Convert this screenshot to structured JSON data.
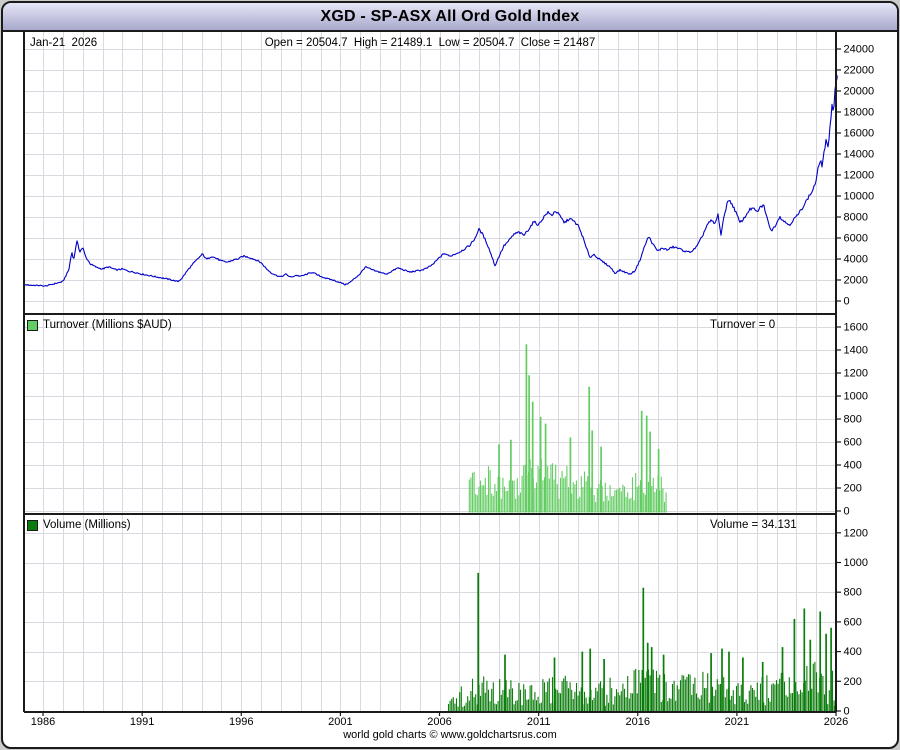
{
  "window": {
    "title": "XGD - SP-ASX All Ord Gold Index"
  },
  "header": {
    "date_label": "Jan-21  2026",
    "ohlc_display": "Open = 20504.7  High = 21489.1  Low = 20504.7  Close = 21487"
  },
  "panels": {
    "turnover": {
      "legend": "Turnover (Millions $AUD)",
      "current_display": "Turnover = 0"
    },
    "volume": {
      "legend": "Volume (Millions)",
      "current_display": "Volume = 34.131"
    }
  },
  "footer": {
    "credit": "world gold charts © www.goldchartsrus.com"
  },
  "colors": {
    "price_line": "#0000c8",
    "turnover_bar": "#63cc63",
    "volume_bar": "#0a7d0a",
    "grid": "#d9d9e0",
    "axis": "#1b1b1b",
    "titlebar_top": "#e6e6f7",
    "titlebar_bottom": "#a8a8cc",
    "frame_border": "#1b1b1b",
    "outer_background": "#cbcbcb"
  },
  "chart_data": [
    {
      "type": "line",
      "name": "XGD price",
      "title": "XGD - SP-ASX All Ord Gold Index",
      "xlabel": "",
      "ylabel": "",
      "xlim": [
        1985.04,
        2026.06
      ],
      "ylim": [
        0,
        24000
      ],
      "y_ticks": [
        0,
        2000,
        4000,
        6000,
        8000,
        10000,
        12000,
        14000,
        16000,
        18000,
        20000,
        22000,
        24000
      ],
      "x_ticks": [
        1986,
        1991,
        1996,
        2001,
        2006,
        2011,
        2016,
        2021,
        2026
      ],
      "grid": true,
      "legend_position": "none",
      "last_bar": {
        "date": "Jan-21 2026",
        "open": 20504.7,
        "high": 21489.1,
        "low": 20504.7,
        "close": 21487
      },
      "points": [
        [
          1985.05,
          1550
        ],
        [
          1985.4,
          1500
        ],
        [
          1985.8,
          1480
        ],
        [
          1986.1,
          1420
        ],
        [
          1986.4,
          1560
        ],
        [
          1986.7,
          1700
        ],
        [
          1987.0,
          1850
        ],
        [
          1987.15,
          2400
        ],
        [
          1987.3,
          2950
        ],
        [
          1987.45,
          4700
        ],
        [
          1987.55,
          3900
        ],
        [
          1987.7,
          5750
        ],
        [
          1987.85,
          4700
        ],
        [
          1988.0,
          5100
        ],
        [
          1988.15,
          4200
        ],
        [
          1988.4,
          3500
        ],
        [
          1988.7,
          3200
        ],
        [
          1989.0,
          3050
        ],
        [
          1989.3,
          3250
        ],
        [
          1989.7,
          2950
        ],
        [
          1990.0,
          3050
        ],
        [
          1990.3,
          2850
        ],
        [
          1990.7,
          2700
        ],
        [
          1991.0,
          2550
        ],
        [
          1991.3,
          2450
        ],
        [
          1991.7,
          2300
        ],
        [
          1992.0,
          2200
        ],
        [
          1992.4,
          2050
        ],
        [
          1992.8,
          1850
        ],
        [
          1993.0,
          2150
        ],
        [
          1993.3,
          2950
        ],
        [
          1993.6,
          3600
        ],
        [
          1993.85,
          4100
        ],
        [
          1994.05,
          4480
        ],
        [
          1994.25,
          3950
        ],
        [
          1994.5,
          4280
        ],
        [
          1994.75,
          4050
        ],
        [
          1995.0,
          3800
        ],
        [
          1995.3,
          3700
        ],
        [
          1995.6,
          3900
        ],
        [
          1995.9,
          4050
        ],
        [
          1996.1,
          4280
        ],
        [
          1996.4,
          4150
        ],
        [
          1996.7,
          3950
        ],
        [
          1997.0,
          3650
        ],
        [
          1997.25,
          3100
        ],
        [
          1997.5,
          2700
        ],
        [
          1997.75,
          2450
        ],
        [
          1998.0,
          2300
        ],
        [
          1998.25,
          2550
        ],
        [
          1998.5,
          2250
        ],
        [
          1998.75,
          2450
        ],
        [
          1999.0,
          2350
        ],
        [
          1999.3,
          2550
        ],
        [
          1999.6,
          2750
        ],
        [
          1999.8,
          2500
        ],
        [
          2000.0,
          2350
        ],
        [
          2000.3,
          2150
        ],
        [
          2000.7,
          1950
        ],
        [
          2001.0,
          1750
        ],
        [
          2001.25,
          1550
        ],
        [
          2001.5,
          1800
        ],
        [
          2001.75,
          2200
        ],
        [
          2002.0,
          2600
        ],
        [
          2002.25,
          3250
        ],
        [
          2002.5,
          3050
        ],
        [
          2002.75,
          2850
        ],
        [
          2003.0,
          2750
        ],
        [
          2003.3,
          2550
        ],
        [
          2003.6,
          2850
        ],
        [
          2003.9,
          3150
        ],
        [
          2004.2,
          2950
        ],
        [
          2004.5,
          2750
        ],
        [
          2004.8,
          2850
        ],
        [
          2005.1,
          2950
        ],
        [
          2005.4,
          3150
        ],
        [
          2005.7,
          3550
        ],
        [
          2006.0,
          4150
        ],
        [
          2006.25,
          4550
        ],
        [
          2006.5,
          4250
        ],
        [
          2006.75,
          4450
        ],
        [
          2007.0,
          4650
        ],
        [
          2007.25,
          4950
        ],
        [
          2007.5,
          5250
        ],
        [
          2007.75,
          5850
        ],
        [
          2008.0,
          6850
        ],
        [
          2008.2,
          6250
        ],
        [
          2008.4,
          5450
        ],
        [
          2008.6,
          4450
        ],
        [
          2008.8,
          3350
        ],
        [
          2009.0,
          4250
        ],
        [
          2009.25,
          5250
        ],
        [
          2009.5,
          5750
        ],
        [
          2009.75,
          6350
        ],
        [
          2010.0,
          6550
        ],
        [
          2010.25,
          6250
        ],
        [
          2010.5,
          6850
        ],
        [
          2010.75,
          7550
        ],
        [
          2011.0,
          7250
        ],
        [
          2011.2,
          7850
        ],
        [
          2011.45,
          8450
        ],
        [
          2011.65,
          8150
        ],
        [
          2011.85,
          8600
        ],
        [
          2012.05,
          8150
        ],
        [
          2012.3,
          7450
        ],
        [
          2012.55,
          7850
        ],
        [
          2012.8,
          7550
        ],
        [
          2013.0,
          7150
        ],
        [
          2013.2,
          6250
        ],
        [
          2013.4,
          5050
        ],
        [
          2013.6,
          4150
        ],
        [
          2013.8,
          4450
        ],
        [
          2014.0,
          4050
        ],
        [
          2014.3,
          3650
        ],
        [
          2014.6,
          3250
        ],
        [
          2014.85,
          2650
        ],
        [
          2015.1,
          2950
        ],
        [
          2015.35,
          2750
        ],
        [
          2015.6,
          2550
        ],
        [
          2015.85,
          2850
        ],
        [
          2016.1,
          3850
        ],
        [
          2016.35,
          5250
        ],
        [
          2016.55,
          6150
        ],
        [
          2016.75,
          5450
        ],
        [
          2017.0,
          4750
        ],
        [
          2017.25,
          5050
        ],
        [
          2017.5,
          4850
        ],
        [
          2017.75,
          5150
        ],
        [
          2018.0,
          5050
        ],
        [
          2018.25,
          4850
        ],
        [
          2018.5,
          4650
        ],
        [
          2018.75,
          4750
        ],
        [
          2019.0,
          5250
        ],
        [
          2019.25,
          6150
        ],
        [
          2019.5,
          7250
        ],
        [
          2019.7,
          7650
        ],
        [
          2019.9,
          7350
        ],
        [
          2020.05,
          8250
        ],
        [
          2020.2,
          6250
        ],
        [
          2020.35,
          8050
        ],
        [
          2020.55,
          9650
        ],
        [
          2020.75,
          9250
        ],
        [
          2020.95,
          8450
        ],
        [
          2021.15,
          7450
        ],
        [
          2021.4,
          7950
        ],
        [
          2021.6,
          8650
        ],
        [
          2021.8,
          8850
        ],
        [
          2022.0,
          8450
        ],
        [
          2022.2,
          8950
        ],
        [
          2022.35,
          9150
        ],
        [
          2022.55,
          7650
        ],
        [
          2022.75,
          6650
        ],
        [
          2022.95,
          7250
        ],
        [
          2023.15,
          8050
        ],
        [
          2023.4,
          7550
        ],
        [
          2023.65,
          7250
        ],
        [
          2023.9,
          7850
        ],
        [
          2024.1,
          8250
        ],
        [
          2024.35,
          9050
        ],
        [
          2024.6,
          9850
        ],
        [
          2024.8,
          10450
        ],
        [
          2025.0,
          11450
        ],
        [
          2025.1,
          12650
        ],
        [
          2025.2,
          13450
        ],
        [
          2025.3,
          12850
        ],
        [
          2025.4,
          14250
        ],
        [
          2025.5,
          15250
        ],
        [
          2025.6,
          14450
        ],
        [
          2025.7,
          16850
        ],
        [
          2025.8,
          18650
        ],
        [
          2025.87,
          17850
        ],
        [
          2025.93,
          19850
        ],
        [
          2026.0,
          20900
        ],
        [
          2026.06,
          21487
        ]
      ]
    },
    {
      "type": "bar",
      "name": "Turnover (Millions $AUD)",
      "current_value": 0,
      "ylim": [
        0,
        1600
      ],
      "y_ticks": [
        0,
        200,
        400,
        600,
        800,
        1000,
        1200,
        1400,
        1600
      ],
      "range": [
        2007.5,
        2017.5
      ],
      "envelope": [
        [
          2007.5,
          260
        ],
        [
          2008.0,
          300
        ],
        [
          2008.5,
          320
        ],
        [
          2009.0,
          290
        ],
        [
          2009.5,
          310
        ],
        [
          2010.0,
          330
        ],
        [
          2010.5,
          360
        ],
        [
          2011.0,
          380
        ],
        [
          2011.5,
          370
        ],
        [
          2012.0,
          330
        ],
        [
          2012.5,
          310
        ],
        [
          2013.0,
          320
        ],
        [
          2013.5,
          300
        ],
        [
          2014.0,
          240
        ],
        [
          2014.5,
          210
        ],
        [
          2015.0,
          200
        ],
        [
          2015.5,
          230
        ],
        [
          2016.0,
          280
        ],
        [
          2016.5,
          300
        ],
        [
          2017.0,
          260
        ],
        [
          2017.5,
          220
        ]
      ],
      "spikes": [
        [
          2009.0,
          580
        ],
        [
          2009.6,
          620
        ],
        [
          2010.38,
          1450
        ],
        [
          2010.52,
          1180
        ],
        [
          2010.7,
          950
        ],
        [
          2011.1,
          820
        ],
        [
          2011.35,
          760
        ],
        [
          2012.6,
          640
        ],
        [
          2013.55,
          1080
        ],
        [
          2013.7,
          700
        ],
        [
          2014.15,
          560
        ],
        [
          2016.2,
          870
        ],
        [
          2016.45,
          830
        ],
        [
          2016.62,
          690
        ],
        [
          2017.05,
          540
        ]
      ]
    },
    {
      "type": "bar",
      "name": "Volume (Millions)",
      "current_value": 34.131,
      "ylim": [
        0,
        1200
      ],
      "y_ticks": [
        0,
        200,
        400,
        600,
        800,
        1000,
        1200
      ],
      "range": [
        2006.45,
        2026.02
      ],
      "envelope": [
        [
          2006.45,
          60
        ],
        [
          2007.0,
          110
        ],
        [
          2007.5,
          140
        ],
        [
          2008.0,
          170
        ],
        [
          2008.5,
          150
        ],
        [
          2009.0,
          160
        ],
        [
          2010.0,
          140
        ],
        [
          2011.0,
          150
        ],
        [
          2012.0,
          160
        ],
        [
          2013.0,
          180
        ],
        [
          2014.0,
          150
        ],
        [
          2015.0,
          160
        ],
        [
          2016.0,
          260
        ],
        [
          2016.5,
          230
        ],
        [
          2017.0,
          190
        ],
        [
          2018.0,
          160
        ],
        [
          2019.0,
          180
        ],
        [
          2020.0,
          190
        ],
        [
          2021.0,
          170
        ],
        [
          2022.0,
          150
        ],
        [
          2023.0,
          180
        ],
        [
          2024.0,
          210
        ],
        [
          2025.0,
          230
        ],
        [
          2025.9,
          200
        ],
        [
          2026.02,
          120
        ]
      ],
      "spikes": [
        [
          2007.95,
          930
        ],
        [
          2009.3,
          380
        ],
        [
          2011.8,
          360
        ],
        [
          2013.2,
          400
        ],
        [
          2013.6,
          420
        ],
        [
          2014.3,
          350
        ],
        [
          2016.28,
          830
        ],
        [
          2016.5,
          460
        ],
        [
          2016.7,
          430
        ],
        [
          2017.3,
          380
        ],
        [
          2019.7,
          390
        ],
        [
          2020.25,
          420
        ],
        [
          2020.6,
          400
        ],
        [
          2021.3,
          360
        ],
        [
          2022.3,
          330
        ],
        [
          2023.3,
          430
        ],
        [
          2023.9,
          620
        ],
        [
          2024.4,
          690
        ],
        [
          2024.7,
          480
        ],
        [
          2025.2,
          670
        ],
        [
          2025.5,
          520
        ],
        [
          2025.75,
          560
        ]
      ]
    }
  ]
}
